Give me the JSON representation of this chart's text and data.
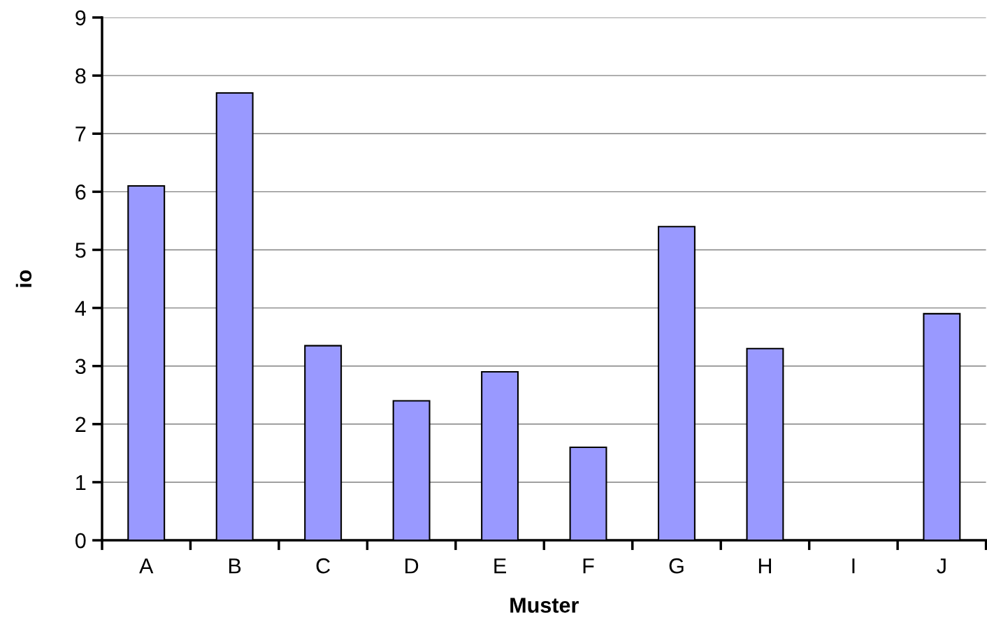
{
  "chart_data": {
    "type": "bar",
    "xlabel": "Muster",
    "ylabel": "io",
    "categories": [
      "A",
      "B",
      "C",
      "D",
      "E",
      "F",
      "G",
      "H",
      "I",
      "J"
    ],
    "values": [
      6.1,
      7.7,
      3.35,
      2.4,
      2.9,
      1.6,
      5.4,
      3.3,
      null,
      3.9
    ],
    "color": "#9999ff",
    "ylim": [
      0,
      9
    ],
    "yticks": [
      0,
      1,
      2,
      3,
      4,
      5,
      6,
      7,
      8,
      9
    ],
    "grid": "y",
    "legend": false
  }
}
